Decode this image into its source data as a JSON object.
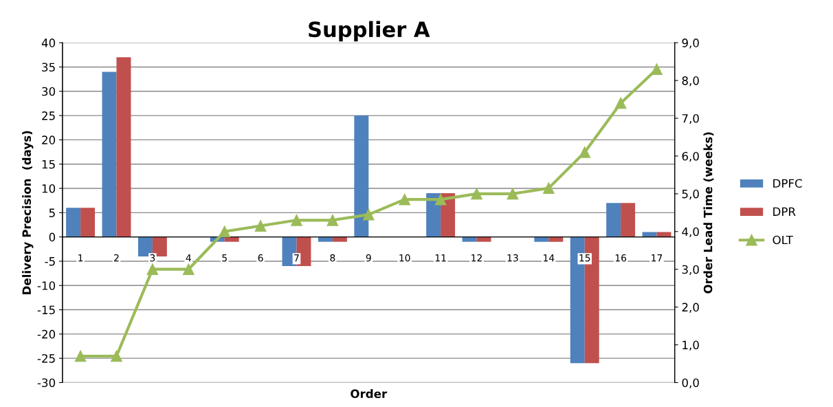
{
  "chart_data": {
    "type": "bar",
    "title": "Supplier A",
    "xlabel": "Order",
    "ylabel": "Delivery Precision  (days)",
    "y2label": "Order Lead Time (weeks)",
    "categories": [
      "1",
      "2",
      "3",
      "4",
      "5",
      "6",
      "7",
      "8",
      "9",
      "10",
      "11",
      "12",
      "13",
      "14",
      "15",
      "16",
      "17"
    ],
    "series": [
      {
        "name": "DPFC",
        "color": "#4f81bd",
        "values": [
          6,
          34,
          -4,
          0,
          -1,
          0,
          -6,
          -1,
          25,
          0,
          9,
          -1,
          0,
          -1,
          -26,
          7,
          1
        ]
      },
      {
        "name": "DPR",
        "color": "#c0504d",
        "values": [
          6,
          37,
          -4,
          0,
          -1,
          0,
          -6,
          -1,
          0,
          0,
          9,
          -1,
          0,
          -1,
          -26,
          7,
          1
        ]
      },
      {
        "name": "OLT",
        "color": "#9bbb59",
        "type": "line",
        "axis": "y2",
        "marker": "triangle",
        "values": [
          0.7,
          0.7,
          3.0,
          3.0,
          4.0,
          4.15,
          4.3,
          4.3,
          4.45,
          4.85,
          4.85,
          5.0,
          5.0,
          5.15,
          6.1,
          7.4,
          8.3
        ]
      }
    ],
    "ylim": [
      -30,
      40
    ],
    "yticks": [
      -30,
      -25,
      -20,
      -15,
      -10,
      -5,
      0,
      5,
      10,
      15,
      20,
      25,
      30,
      35,
      40
    ],
    "y2lim": [
      0,
      9
    ],
    "y2ticks": [
      {
        "value": 0,
        "label": "0,0"
      },
      {
        "value": 1,
        "label": "1,0"
      },
      {
        "value": 2,
        "label": "2,0"
      },
      {
        "value": 3,
        "label": "3,0"
      },
      {
        "value": 4,
        "label": "4,0"
      },
      {
        "value": 5,
        "label": "5,0"
      },
      {
        "value": 6,
        "label": "6,0"
      },
      {
        "value": 7,
        "label": "7,0"
      },
      {
        "value": 8,
        "label": "8,0"
      },
      {
        "value": 9,
        "label": "9,0"
      }
    ],
    "grid": "y",
    "legend": "right"
  }
}
